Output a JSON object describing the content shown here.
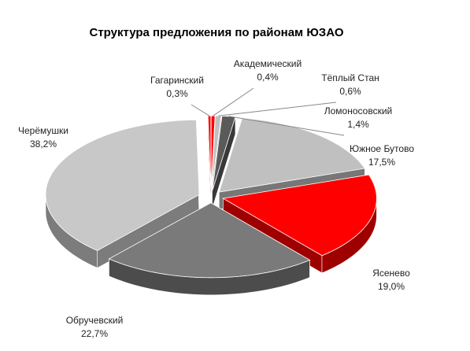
{
  "chart_data": {
    "type": "pie",
    "title": "Структура  предложения по районам ЮЗАО",
    "categories": [
      "Академический",
      "Тёплый Стан",
      "Ломоносовский",
      "Южное Бутово",
      "Ясенево",
      "Обручевский",
      "Черёмушки",
      "Гагаринский"
    ],
    "values": [
      0.4,
      0.6,
      1.4,
      17.5,
      19.0,
      22.7,
      38.2,
      0.3
    ],
    "value_labels": [
      "0,4%",
      "0,6%",
      "1,4%",
      "17,5%",
      "19,0%",
      "22,7%",
      "38,2%",
      "0,3%"
    ],
    "colors": [
      "#ff0000",
      "#c0c0c0",
      "#5a5a5a",
      "#c0c0c0",
      "#ff0000",
      "#7a7a7a",
      "#c8c8c8",
      "#ff0000"
    ]
  }
}
